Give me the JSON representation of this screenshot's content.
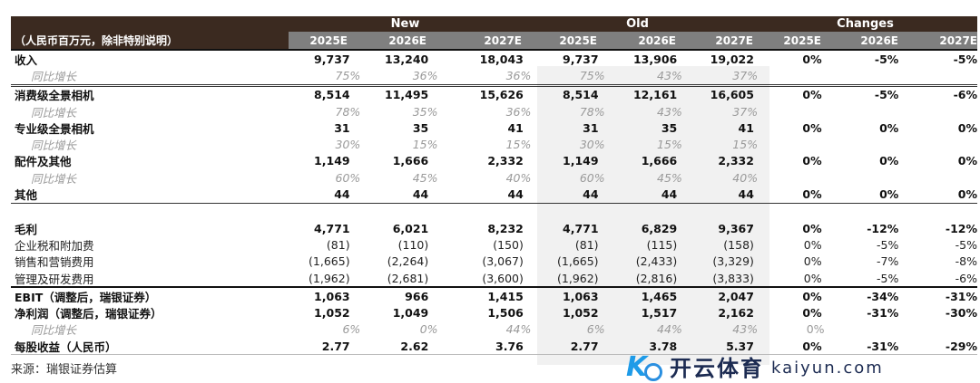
{
  "header": {
    "unit_label": "（人民币百万元，除非特别说明）",
    "groups": [
      "New",
      "Old",
      "Changes"
    ],
    "years": [
      "2025E",
      "2026E",
      "2027E",
      "2025E",
      "2026E",
      "2027E",
      "2025E",
      "2026E",
      "2027E"
    ]
  },
  "rows": [
    {
      "label": "收入",
      "style": "b",
      "vals": [
        "9,737",
        "13,240",
        "18,043",
        "9,737",
        "13,906",
        "19,022",
        "0%",
        "-5%",
        "-5%"
      ]
    },
    {
      "label": "同比增长",
      "style": "g",
      "vals": [
        "75%",
        "36%",
        "36%",
        "75%",
        "43%",
        "37%",
        "",
        "",
        ""
      ]
    },
    {
      "label": "消费级全景相机",
      "style": "b",
      "vals": [
        "8,514",
        "11,495",
        "15,626",
        "8,514",
        "12,161",
        "16,605",
        "0%",
        "-5%",
        "-6%"
      ]
    },
    {
      "label": "同比增长",
      "style": "g",
      "vals": [
        "78%",
        "35%",
        "36%",
        "78%",
        "43%",
        "37%",
        "",
        "",
        ""
      ]
    },
    {
      "label": "专业级全景相机",
      "style": "b",
      "vals": [
        "31",
        "35",
        "41",
        "31",
        "35",
        "41",
        "0%",
        "0%",
        "0%"
      ]
    },
    {
      "label": "同比增长",
      "style": "g",
      "vals": [
        "30%",
        "15%",
        "15%",
        "30%",
        "15%",
        "15%",
        "",
        "",
        ""
      ]
    },
    {
      "label": "配件及其他",
      "style": "b",
      "vals": [
        "1,149",
        "1,666",
        "2,332",
        "1,149",
        "1,666",
        "2,332",
        "0%",
        "0%",
        "0%"
      ]
    },
    {
      "label": "同比增长",
      "style": "g",
      "vals": [
        "60%",
        "45%",
        "40%",
        "60%",
        "45%",
        "40%",
        "",
        "",
        ""
      ]
    },
    {
      "label": "其他",
      "style": "b",
      "vals": [
        "44",
        "44",
        "44",
        "44",
        "44",
        "44",
        "0%",
        "0%",
        "0%"
      ]
    },
    {
      "label": "",
      "style": "n",
      "vals": [
        "",
        "",
        "",
        "",
        "",
        "",
        "",
        "",
        ""
      ]
    },
    {
      "label": "毛利",
      "style": "b",
      "vals": [
        "4,771",
        "6,021",
        "8,232",
        "4,771",
        "6,829",
        "9,367",
        "0%",
        "-12%",
        "-12%"
      ]
    },
    {
      "label": "企业税和附加费",
      "style": "n",
      "vals": [
        "(81)",
        "(110)",
        "(150)",
        "(81)",
        "(115)",
        "(158)",
        "0%",
        "-5%",
        "-5%"
      ]
    },
    {
      "label": "销售和营销费用",
      "style": "n",
      "vals": [
        "(1,665)",
        "(2,264)",
        "(3,067)",
        "(1,665)",
        "(2,433)",
        "(3,329)",
        "0%",
        "-7%",
        "-8%"
      ]
    },
    {
      "label": "管理及研发费用",
      "style": "n",
      "vals": [
        "(1,962)",
        "(2,681)",
        "(3,600)",
        "(1,962)",
        "(2,816)",
        "(3,833)",
        "0%",
        "-5%",
        "-6%"
      ]
    },
    {
      "label": "EBIT（调整后，瑞银证券）",
      "style": "b",
      "vals": [
        "1,063",
        "966",
        "1,415",
        "1,063",
        "1,465",
        "2,047",
        "0%",
        "-34%",
        "-31%"
      ]
    },
    {
      "label": "净利润（调整后，瑞银证券）",
      "style": "b",
      "vals": [
        "1,052",
        "1,049",
        "1,506",
        "1,052",
        "1,517",
        "2,162",
        "0%",
        "-31%",
        "-30%"
      ]
    },
    {
      "label": "同比增长",
      "style": "g",
      "vals": [
        "6%",
        "0%",
        "44%",
        "6%",
        "44%",
        "43%",
        "0%",
        "",
        ""
      ]
    },
    {
      "label": "每股收益（人民币）",
      "style": "b",
      "vals": [
        "2.77",
        "2.62",
        "3.76",
        "2.77",
        "3.78",
        "5.37",
        "0%",
        "-31%",
        "-29%"
      ]
    }
  ],
  "footer": "来源：瑞银证券估算",
  "watermark": {
    "cn": "开云体育",
    "en": "kaiyun.com"
  }
}
